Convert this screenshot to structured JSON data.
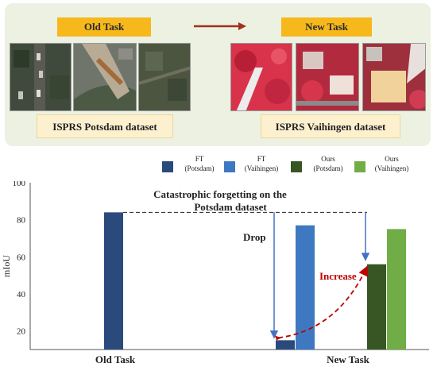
{
  "header": {
    "old_task_label": "Old Task",
    "new_task_label": "New Task",
    "old_dataset": "ISPRS Potsdam dataset",
    "new_dataset": "ISPRS Vaihingen dataset",
    "colors": {
      "panel": "#ecf1e2",
      "task_label": "#f6b81b",
      "dataset_label": "#fcf0cf",
      "arrow": "#a0321a"
    }
  },
  "legend": [
    {
      "line1": "FT",
      "line2": "(Potsdam)",
      "color": "#2a4a7c"
    },
    {
      "line1": "FT",
      "line2": "(Vaihingen)",
      "color": "#3e78c1"
    },
    {
      "line1": "Ours",
      "line2": "(Potsdam)",
      "color": "#375623"
    },
    {
      "line1": "Ours",
      "line2": "(Vaihingen)",
      "color": "#70ad47"
    }
  ],
  "chart_data": {
    "type": "bar",
    "ylabel": "mIoU",
    "ylim": [
      10,
      100
    ],
    "yticks": [
      20,
      40,
      60,
      80,
      100
    ],
    "categories": [
      "Old Task",
      "New Task"
    ],
    "bars": [
      {
        "category": "Old Task",
        "series": "FT (Potsdam)",
        "value": 84,
        "color": "#2a4a7c"
      },
      {
        "category": "New Task",
        "series": "FT (Potsdam)",
        "value": 15,
        "color": "#2a4a7c"
      },
      {
        "category": "New Task",
        "series": "FT (Vaihingen)",
        "value": 77,
        "color": "#3e78c1"
      },
      {
        "category": "New Task",
        "series": "Ours (Potsdam)",
        "value": 56,
        "color": "#375623"
      },
      {
        "category": "New Task",
        "series": "Ours (Vaihingen)",
        "value": 75,
        "color": "#70ad47"
      }
    ],
    "annotations": {
      "forgetting_line1": "Catastrophic forgetting on the",
      "forgetting_line2": "Potsdam dataset",
      "drop": "Drop",
      "increase": "Increase"
    },
    "colors": {
      "reference_line": "#222222",
      "drop_arrow": "#4472c4",
      "increase_arrow": "#c00000"
    }
  }
}
